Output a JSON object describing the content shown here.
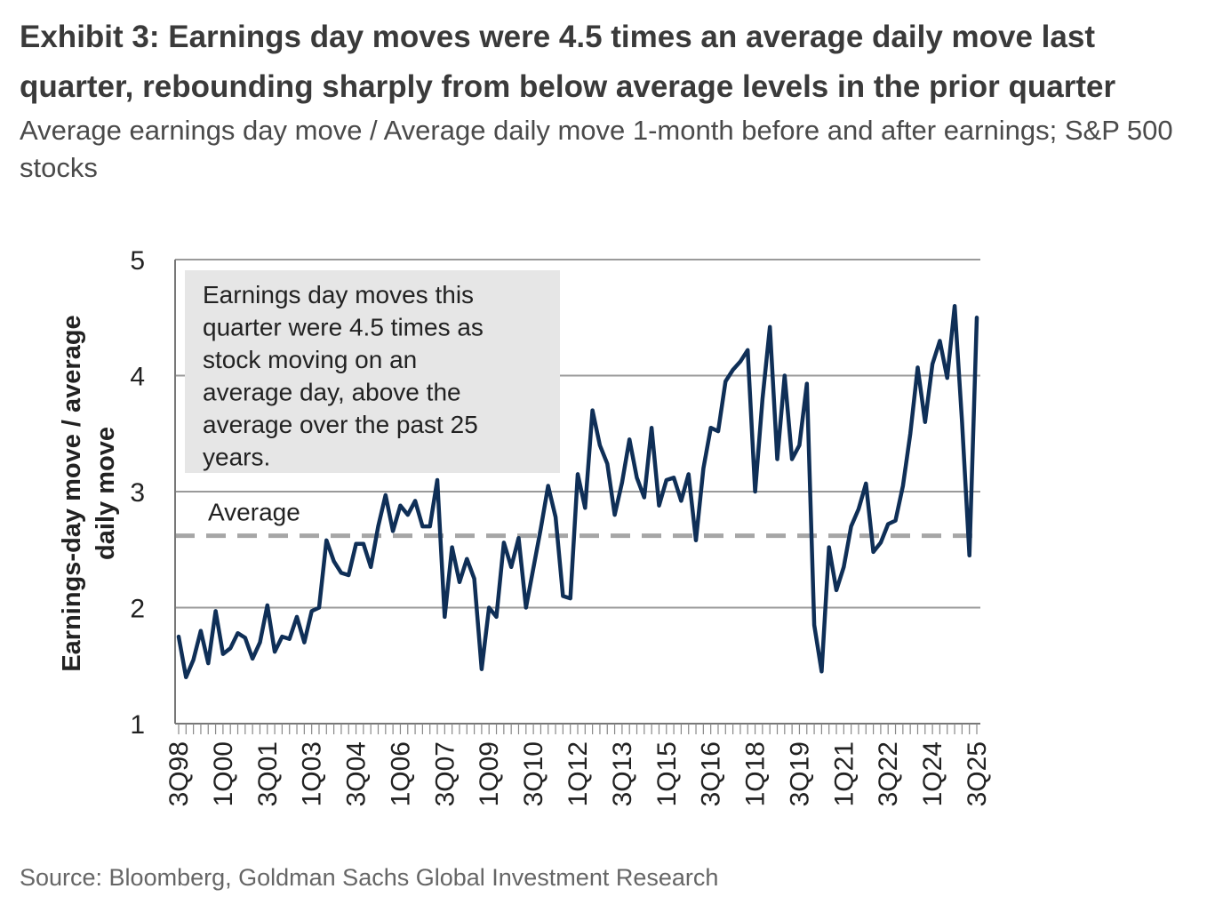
{
  "header": {
    "title": "Exhibit 3: Earnings day moves were 4.5 times an average daily move last quarter, rebounding sharply from below average levels in the prior quarter",
    "subtitle": "Average earnings day move / Average daily move 1-month before and after earnings; S&P 500 stocks"
  },
  "footer": {
    "source": "Source: Bloomberg, Goldman Sachs Global Investment Research"
  },
  "colors": {
    "series": "#0f2f57",
    "average": "#a6a6a6",
    "grid": "#9a9a9a",
    "note_bg": "#e6e6e6"
  },
  "chart_data": {
    "type": "line",
    "title": "Earnings day moves were 4.5 times an average daily move last quarter",
    "ylabel": "Earnings-day move / average daily move",
    "ylabel_lines": [
      "Earnings-day move / average",
      "daily move"
    ],
    "ylim": [
      1,
      5
    ],
    "yticks": [
      "1",
      "2",
      "3",
      "4",
      "5"
    ],
    "grid": true,
    "xtick_labels": [
      "3Q98",
      "1Q00",
      "3Q01",
      "1Q03",
      "3Q04",
      "1Q06",
      "3Q07",
      "1Q09",
      "3Q10",
      "1Q12",
      "3Q13",
      "1Q15",
      "3Q16",
      "1Q18",
      "3Q19",
      "1Q21",
      "3Q22",
      "1Q24",
      "3Q25"
    ],
    "average": {
      "label": "Average",
      "value": 2.62
    },
    "annotation_lines": [
      "Earnings day moves this",
      "quarter were 4.5 times as",
      "stock moving on an",
      "average day, above the",
      "average over the past 25",
      "years."
    ],
    "series": [
      {
        "name": "Earnings-day move / average daily move",
        "start": "3Q98",
        "end": "3Q25",
        "values": [
          1.75,
          1.4,
          1.55,
          1.8,
          1.52,
          1.97,
          1.6,
          1.65,
          1.78,
          1.74,
          1.56,
          1.7,
          2.02,
          1.62,
          1.75,
          1.73,
          1.92,
          1.7,
          1.97,
          2.0,
          2.58,
          2.4,
          2.3,
          2.28,
          2.55,
          2.55,
          2.35,
          2.7,
          2.97,
          2.66,
          2.88,
          2.8,
          2.92,
          2.7,
          2.7,
          3.1,
          1.92,
          2.52,
          2.22,
          2.42,
          2.25,
          1.47,
          2.0,
          1.92,
          2.56,
          2.35,
          2.6,
          2.0,
          2.34,
          2.68,
          3.05,
          2.78,
          2.1,
          2.08,
          3.15,
          2.86,
          3.7,
          3.4,
          3.24,
          2.8,
          3.08,
          3.45,
          3.12,
          2.95,
          3.55,
          2.88,
          3.1,
          3.12,
          2.92,
          3.15,
          2.58,
          3.2,
          3.55,
          3.52,
          3.95,
          4.05,
          4.12,
          4.22,
          3.0,
          3.8,
          4.42,
          3.28,
          4.0,
          3.28,
          3.4,
          3.93,
          1.85,
          1.45,
          2.52,
          2.15,
          2.35,
          2.7,
          2.85,
          3.07,
          2.48,
          2.56,
          2.72,
          2.75,
          3.05,
          3.5,
          4.07,
          3.6,
          4.1,
          4.3,
          3.98,
          4.6,
          3.6,
          2.45,
          4.5
        ]
      }
    ]
  }
}
